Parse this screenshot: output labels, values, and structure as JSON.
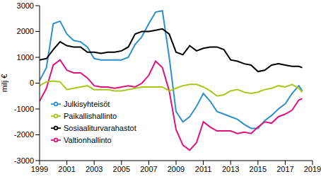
{
  "chart_data": {
    "type": "line",
    "y_label": "milj €",
    "x": [
      1999,
      1999.5,
      2000,
      2000.5,
      2001,
      2001.5,
      2002,
      2002.5,
      2003,
      2003.5,
      2004,
      2004.5,
      2005,
      2005.5,
      2006,
      2006.5,
      2007,
      2007.5,
      2008,
      2008.5,
      2009,
      2009.5,
      2010,
      2010.5,
      2011,
      2011.5,
      2012,
      2012.5,
      2013,
      2013.5,
      2014,
      2014.5,
      2015,
      2015.5,
      2016,
      2016.5,
      2017,
      2017.5,
      2018,
      2018.25
    ],
    "xlim": [
      1999,
      2019
    ],
    "xticks": [
      1999,
      2001,
      2003,
      2005,
      2007,
      2009,
      2011,
      2013,
      2015,
      2017,
      2019
    ],
    "ylim": [
      -3000,
      3000
    ],
    "yticks": [
      -3000,
      -2000,
      -1000,
      0,
      1000,
      2000,
      3000
    ],
    "grid": false,
    "legend": "lower left",
    "series": [
      {
        "name": "Julkisyhteisöt",
        "color": "#2f8fc7",
        "values": [
          100,
          600,
          2300,
          2400,
          1900,
          1650,
          1600,
          1400,
          950,
          900,
          900,
          900,
          900,
          1000,
          1500,
          1800,
          2300,
          2750,
          2800,
          1000,
          -1100,
          -1500,
          -1300,
          -900,
          -400,
          -700,
          -1100,
          -1200,
          -1300,
          -1400,
          -1600,
          -1750,
          -1750,
          -1450,
          -1250,
          -1000,
          -800,
          -400,
          -100,
          -300
        ]
      },
      {
        "name": "Valtionhallinto",
        "color": "#e0137a",
        "values": [
          -700,
          -200,
          700,
          900,
          500,
          400,
          400,
          200,
          -100,
          -150,
          -150,
          -200,
          -150,
          -100,
          -150,
          0,
          300,
          850,
          600,
          -300,
          -1800,
          -2400,
          -2600,
          -2300,
          -1500,
          -1700,
          -1850,
          -1850,
          -1850,
          -1950,
          -1900,
          -1950,
          -1700,
          -1500,
          -1550,
          -1300,
          -1200,
          -1050,
          -650,
          -600
        ]
      },
      {
        "name": "Paikallishallinto",
        "color": "#a8c81e",
        "values": [
          -100,
          50,
          80,
          50,
          -250,
          -200,
          -150,
          -100,
          -250,
          -250,
          -250,
          -300,
          -300,
          -250,
          -200,
          -150,
          -150,
          -150,
          -150,
          -300,
          -200,
          -100,
          -50,
          -50,
          -150,
          -300,
          -500,
          -450,
          -300,
          -250,
          -350,
          -400,
          -350,
          -250,
          -200,
          -100,
          -150,
          -50,
          -200,
          -350
        ]
      },
      {
        "name": "Sosiaaliturvarahastot",
        "color": "#000000",
        "values": [
          900,
          950,
          1300,
          1600,
          1450,
          1400,
          1400,
          1200,
          1200,
          1150,
          1200,
          1200,
          1250,
          1400,
          1900,
          2000,
          2000,
          2050,
          2100,
          1900,
          1200,
          1100,
          1450,
          1250,
          1350,
          1400,
          1400,
          1300,
          900,
          850,
          750,
          700,
          450,
          500,
          700,
          750,
          700,
          650,
          650,
          600
        ]
      }
    ]
  }
}
